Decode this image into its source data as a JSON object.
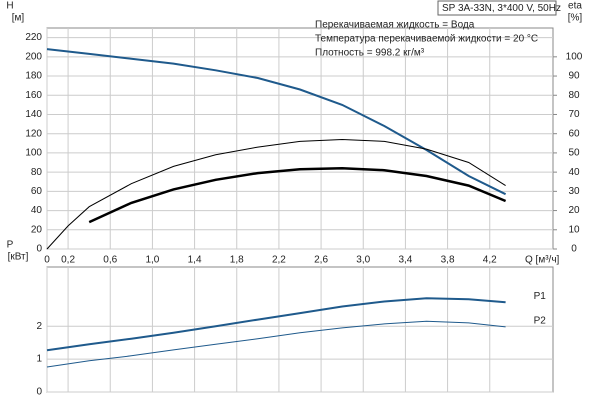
{
  "chart_data": [
    {
      "type": "line",
      "model": "SP 3A-33N, 3*400 V, 50Hz",
      "notes": [
        "Перекачиваемая жидкость = Вода",
        "Температура перекачиваемой жидкости = 20 °C",
        "Плотность = 998.2 кг/м³"
      ],
      "ylabel": "H",
      "yunit": "[м]",
      "y2label": "eta",
      "y2unit": "[%]",
      "xlabel": "Q [м³/ч]",
      "xlim": [
        0,
        4.8
      ],
      "ylim": [
        0,
        230
      ],
      "y2lim": [
        0,
        115
      ],
      "grid": true,
      "xticks": [
        0,
        {
          "value": 0.2,
          "label": "0,2"
        },
        {
          "value": 0.6,
          "label": "0,6"
        },
        {
          "value": 1.0,
          "label": "1,0"
        },
        {
          "value": 1.4,
          "label": "1,4"
        },
        {
          "value": 1.8,
          "label": "1,8"
        },
        {
          "value": 2.2,
          "label": "2,2"
        },
        {
          "value": 2.6,
          "label": "2,6"
        },
        {
          "value": 3.0,
          "label": "3,0"
        },
        {
          "value": 3.4,
          "label": "3,4"
        },
        {
          "value": 3.8,
          "label": "3,8"
        },
        {
          "value": 4.2,
          "label": "4,2"
        }
      ],
      "yticks": [
        0,
        20,
        40,
        60,
        80,
        100,
        120,
        140,
        160,
        180,
        200,
        220
      ],
      "y2ticks": [
        0,
        10,
        20,
        30,
        40,
        50,
        60,
        70,
        80,
        90,
        100
      ],
      "series": [
        {
          "color": "#1f5a8c",
          "width": 2,
          "x": [
            0,
            0.4,
            0.8,
            1.2,
            1.6,
            2.0,
            2.4,
            2.8,
            3.2,
            3.6,
            4.0,
            4.35
          ],
          "values": [
            208,
            203,
            198,
            193,
            186,
            178,
            166,
            150,
            128,
            103,
            76,
            57
          ]
        },
        {
          "color": "#000000",
          "width": 1,
          "axis": "y2",
          "x": [
            0,
            0.2,
            0.4,
            0.8,
            1.2,
            1.6,
            2.0,
            2.4,
            2.8,
            3.2,
            3.6,
            4.0,
            4.35
          ],
          "values": [
            0,
            12,
            22,
            34,
            43,
            49,
            53,
            56,
            57,
            56,
            52,
            45,
            33
          ]
        },
        {
          "color": "#000000",
          "width": 2.5,
          "axis": "y2",
          "x": [
            0.4,
            0.8,
            1.2,
            1.6,
            2.0,
            2.4,
            2.8,
            3.2,
            3.6,
            4.0,
            4.35
          ],
          "values": [
            14,
            24,
            31,
            36,
            39.5,
            41.5,
            42,
            41,
            38,
            33,
            25
          ]
        }
      ]
    },
    {
      "type": "line",
      "ylabel": "P",
      "yunit": "[кВт]",
      "xlim": [
        0,
        4.8
      ],
      "ylim": [
        0,
        3.8
      ],
      "grid": true,
      "xticks": [
        0,
        0.2,
        0.6,
        1.0,
        1.4,
        1.8,
        2.2,
        2.6,
        3.0,
        3.4,
        3.8,
        4.2
      ],
      "yticks": [
        0,
        1,
        2
      ],
      "series": [
        {
          "name": "P1",
          "color": "#1f5a8c",
          "width": 2,
          "x": [
            0,
            0.4,
            0.8,
            1.2,
            1.6,
            2.0,
            2.4,
            2.8,
            3.2,
            3.6,
            4.0,
            4.35
          ],
          "values": [
            1.27,
            1.45,
            1.62,
            1.8,
            2.0,
            2.2,
            2.4,
            2.6,
            2.75,
            2.85,
            2.82,
            2.73
          ]
        },
        {
          "name": "P2",
          "color": "#1f5a8c",
          "width": 1,
          "x": [
            0,
            0.4,
            0.8,
            1.2,
            1.6,
            2.0,
            2.4,
            2.8,
            3.2,
            3.6,
            4.0,
            4.35
          ],
          "values": [
            0.76,
            0.95,
            1.1,
            1.28,
            1.45,
            1.62,
            1.8,
            1.95,
            2.07,
            2.15,
            2.1,
            1.98
          ]
        }
      ]
    }
  ]
}
